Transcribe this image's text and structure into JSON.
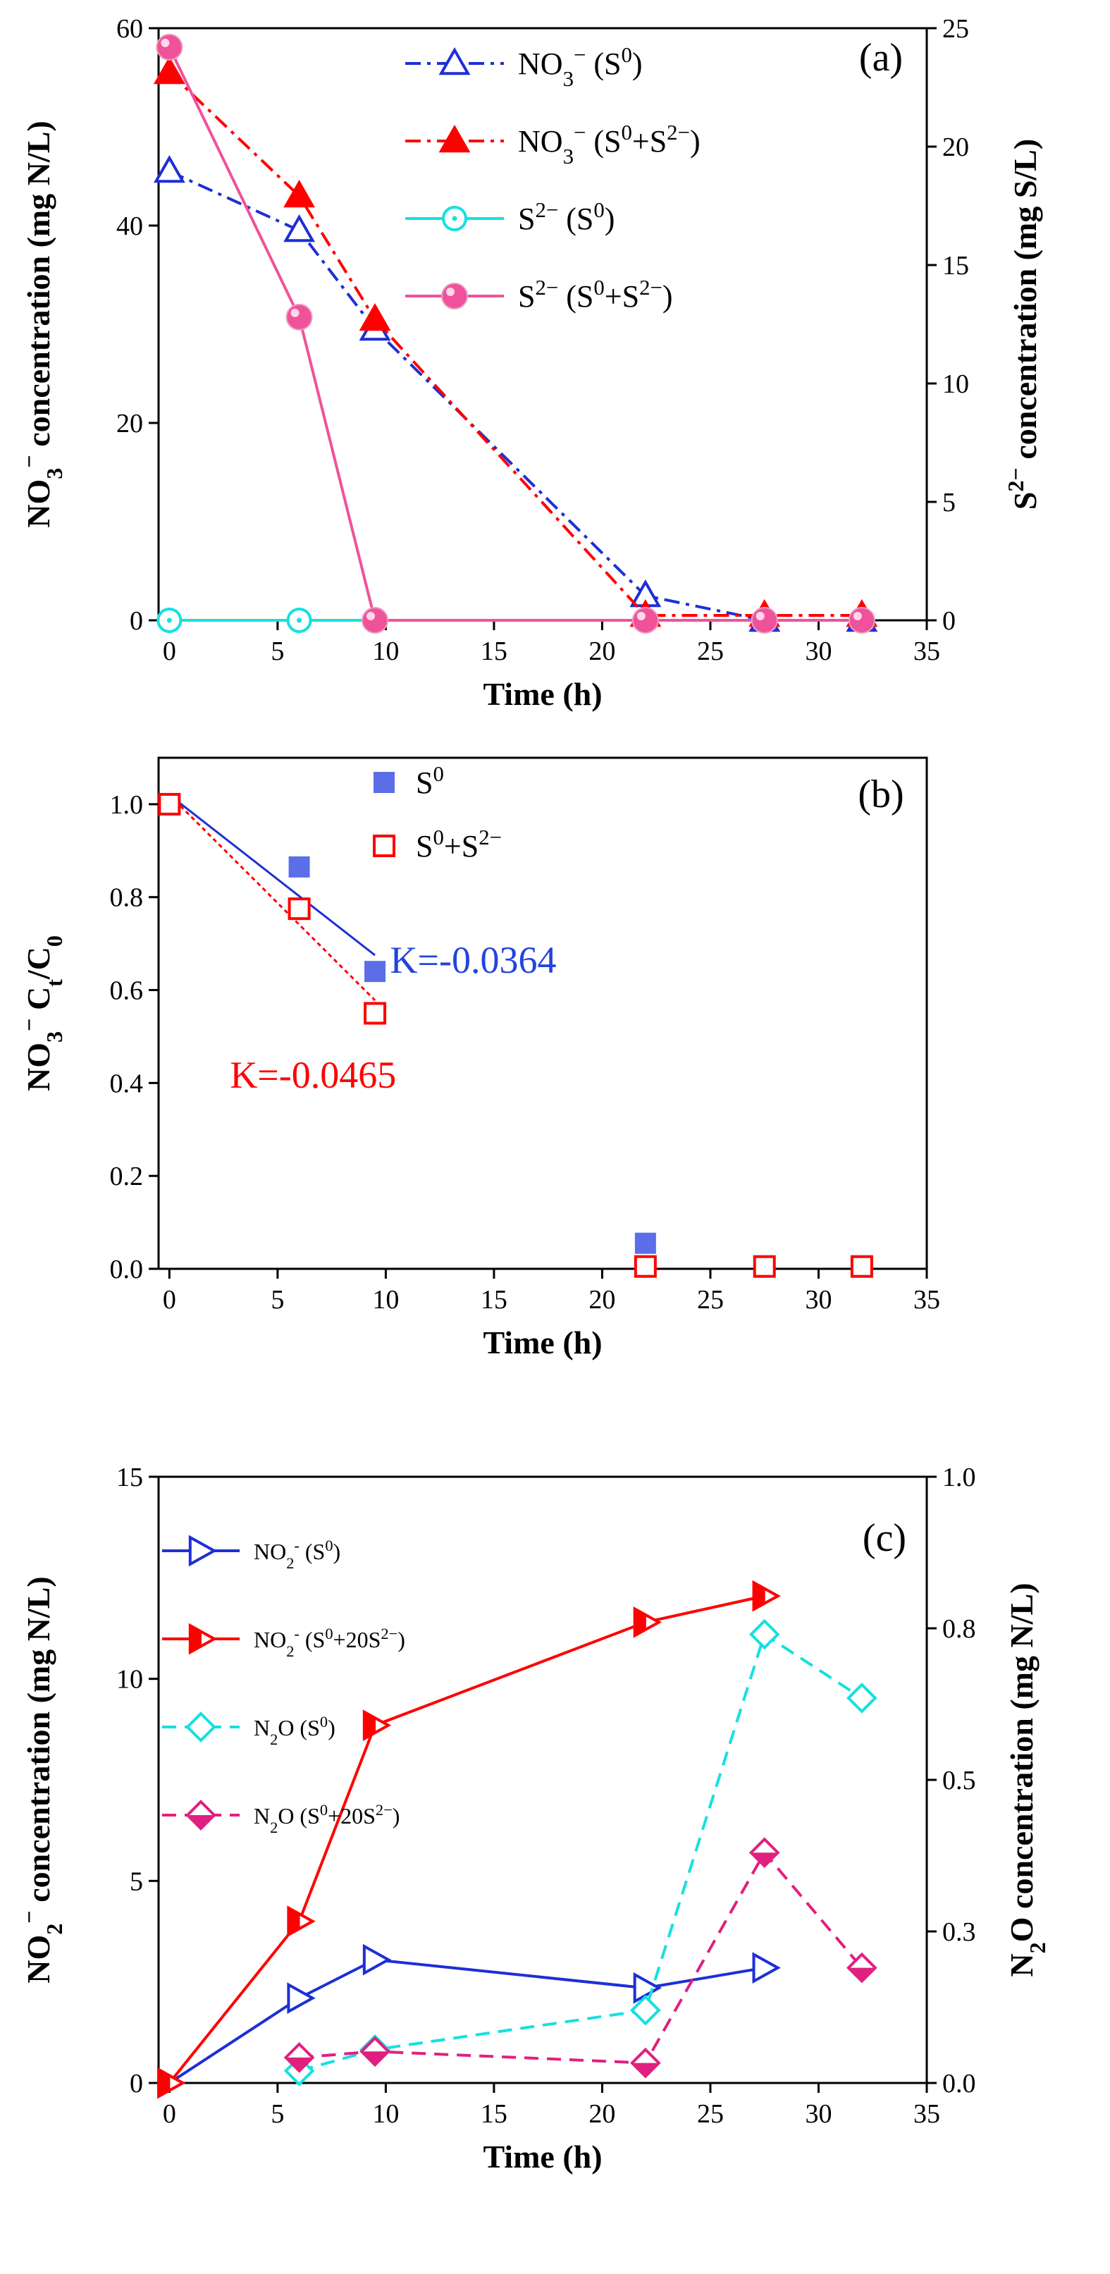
{
  "chart_data": [
    {
      "panel": "(a)",
      "type": "line",
      "title": "",
      "xlabel": "Time (h)",
      "ylabel_left": {
        "main": "NO",
        "sub": "3",
        "sup": "−",
        "rest": " concentration (mg N/L)"
      },
      "ylabel_right": {
        "main": "S",
        "sup": "2−",
        "rest": " concentration (mg S/L)"
      },
      "xlim": [
        -0.5,
        35
      ],
      "xticks": [
        0,
        5,
        10,
        15,
        20,
        25,
        30,
        35
      ],
      "ylim_left": [
        0,
        60
      ],
      "yticks_left": [
        0,
        20,
        40,
        60
      ],
      "ylim_right": [
        0,
        25
      ],
      "yticks_right": [
        0,
        5,
        10,
        15,
        20,
        25
      ],
      "series": [
        {
          "name": "NO3− (S0)",
          "legend": {
            "base": "NO",
            "sub": "3",
            "sup": "−",
            "tail": " (S",
            "tailsup": "0",
            "end": ")"
          },
          "axis": "left",
          "color": "#1d2fd6",
          "marker": "triangle-open",
          "line": "dashdot",
          "x": [
            0,
            6,
            9.5,
            22,
            27.5,
            32
          ],
          "y": [
            45.5,
            39.5,
            29.5,
            2.5,
            0,
            0
          ]
        },
        {
          "name": "NO3− (S0+S2−)",
          "legend": {
            "base": "NO",
            "sub": "3",
            "sup": "−",
            "tail": " (S",
            "tailsup": "0",
            "mid": "+S",
            "midsup": "2−",
            "end": ")"
          },
          "axis": "left",
          "color": "#ff0000",
          "marker": "triangle-filled",
          "line": "dashdot",
          "x": [
            0,
            6,
            9.5,
            22,
            27.5,
            32
          ],
          "y": [
            55.5,
            43,
            30.5,
            0.5,
            0.5,
            0.5
          ]
        },
        {
          "name": "S2− (S0)",
          "legend": {
            "base": "S",
            "sup": "2−",
            "tail": " (S",
            "tailsup": "0",
            "end": ")"
          },
          "axis": "right",
          "color": "#16e0e0",
          "marker": "circle-dot",
          "line": "solid",
          "x": [
            0,
            6,
            9.5
          ],
          "y": [
            0,
            0,
            0
          ]
        },
        {
          "name": "S2− (S0+S2−)",
          "legend": {
            "base": "S",
            "sup": "2−",
            "tail": " (S",
            "tailsup": "0",
            "mid": "+S",
            "midsup": "2−",
            "end": ")"
          },
          "axis": "right",
          "color": "#f0529a",
          "marker": "circle-filled",
          "line": "solid",
          "x": [
            0,
            6,
            9.5,
            22,
            27.5,
            32
          ],
          "y": [
            24.2,
            12.8,
            0,
            0,
            0,
            0
          ]
        }
      ]
    },
    {
      "panel": "(b)",
      "type": "scatter",
      "title": "",
      "xlabel": "Time (h)",
      "ylabel_left": {
        "main": "NO",
        "sub": "3",
        "sup": "−",
        "rest": " C",
        "rsub": "t",
        "rest2": "/C",
        "rsub2": "0"
      },
      "xlim": [
        -0.5,
        35
      ],
      "xticks": [
        0,
        5,
        10,
        15,
        20,
        25,
        30,
        35
      ],
      "ylim": [
        0,
        1.1
      ],
      "yticks": [
        0.0,
        0.2,
        0.4,
        0.6,
        0.8,
        1.0
      ],
      "series": [
        {
          "name": "S0",
          "legend": {
            "base": "S",
            "sup": "0"
          },
          "color": "#5b6ee8",
          "marker": "square-filled",
          "x": [
            0,
            6,
            9.5,
            22
          ],
          "y": [
            1.0,
            0.865,
            0.64,
            0.055
          ]
        },
        {
          "name": "S0+S2−",
          "legend": {
            "base": "S",
            "sup": "0",
            "mid": "+S",
            "midsup": "2−"
          },
          "color": "#ff0000",
          "marker": "square-open",
          "x": [
            0,
            6,
            9.5,
            22,
            27.5,
            32
          ],
          "y": [
            1.0,
            0.775,
            0.55,
            0.005,
            0.005,
            0.005
          ]
        }
      ],
      "fits": [
        {
          "color": "#1d2fd6",
          "label": "K=-0.0364",
          "x": [
            0,
            9.5
          ],
          "y": [
            1.02,
            0.675
          ]
        },
        {
          "color": "#ff0000",
          "label": "K=-0.0465",
          "x": [
            0,
            9.5
          ],
          "y": [
            1.02,
            0.578
          ]
        }
      ]
    },
    {
      "panel": "(c)",
      "type": "line",
      "title": "",
      "xlabel": "Time (h)",
      "ylabel_left": {
        "main": "NO",
        "sub": "2",
        "sup": "−",
        "rest": " concentration (mg N/L)"
      },
      "ylabel_right": {
        "main": "N",
        "sub": "2",
        "rest": "O concentration (mg N/L)"
      },
      "xlim": [
        -0.5,
        35
      ],
      "xticks": [
        0,
        5,
        10,
        15,
        20,
        25,
        30,
        35
      ],
      "ylim_left": [
        0,
        15
      ],
      "yticks_left": [
        0,
        5,
        10,
        15
      ],
      "ylim_right": [
        0,
        1.0
      ],
      "yticks_right": [
        "0.0",
        "0.3",
        "0.5",
        "0.8",
        "1.0"
      ],
      "yticks_right_values": [
        0.0,
        0.25,
        0.5,
        0.75,
        1.0
      ],
      "series": [
        {
          "name": "NO2- (S0)",
          "legend": {
            "base": "NO",
            "sub": "2",
            "sup": "-",
            "tail": " (S",
            "tailsup": "0",
            "end": ")"
          },
          "axis": "left",
          "color": "#1d2fd6",
          "marker": "tri-right-open",
          "line": "solid",
          "x": [
            0,
            6,
            9.5,
            22,
            27.5
          ],
          "y": [
            0,
            2.1,
            3.05,
            2.35,
            2.85
          ]
        },
        {
          "name": "NO2- (S0+20S2−)",
          "legend": {
            "base": "NO",
            "sub": "2",
            "sup": "-",
            "tail": " (S",
            "tailsup": "0",
            "mid": "+20S",
            "midsup": "2−",
            "end": ")"
          },
          "axis": "left",
          "color": "#ff0000",
          "marker": "tri-right-half",
          "line": "solid",
          "x": [
            0,
            6,
            9.5,
            22,
            27.5
          ],
          "y": [
            0,
            4.0,
            8.85,
            11.4,
            12.05
          ]
        },
        {
          "name": "N2O (S0)",
          "legend": {
            "base": "N",
            "sub": "2",
            "rest": "O",
            "tail": " (S",
            "tailsup": "0",
            "end": ")"
          },
          "axis": "right",
          "color": "#16e0e0",
          "marker": "diamond-open",
          "line": "dash",
          "x": [
            6,
            9.5,
            22,
            27.5,
            32
          ],
          "y": [
            0.02,
            0.055,
            0.12,
            0.74,
            0.635
          ]
        },
        {
          "name": "N2O (S0+20S2−)",
          "legend": {
            "base": "N",
            "sub": "2",
            "rest": "O",
            "tail": " (S",
            "tailsup": "0",
            "mid": "+20S",
            "midsup": "2−",
            "end": ")"
          },
          "axis": "right",
          "color": "#e0207f",
          "marker": "diamond-half",
          "line": "dash",
          "x": [
            6,
            9.5,
            22,
            27.5,
            32
          ],
          "y": [
            0.042,
            0.052,
            0.033,
            0.38,
            0.19
          ]
        }
      ]
    }
  ]
}
